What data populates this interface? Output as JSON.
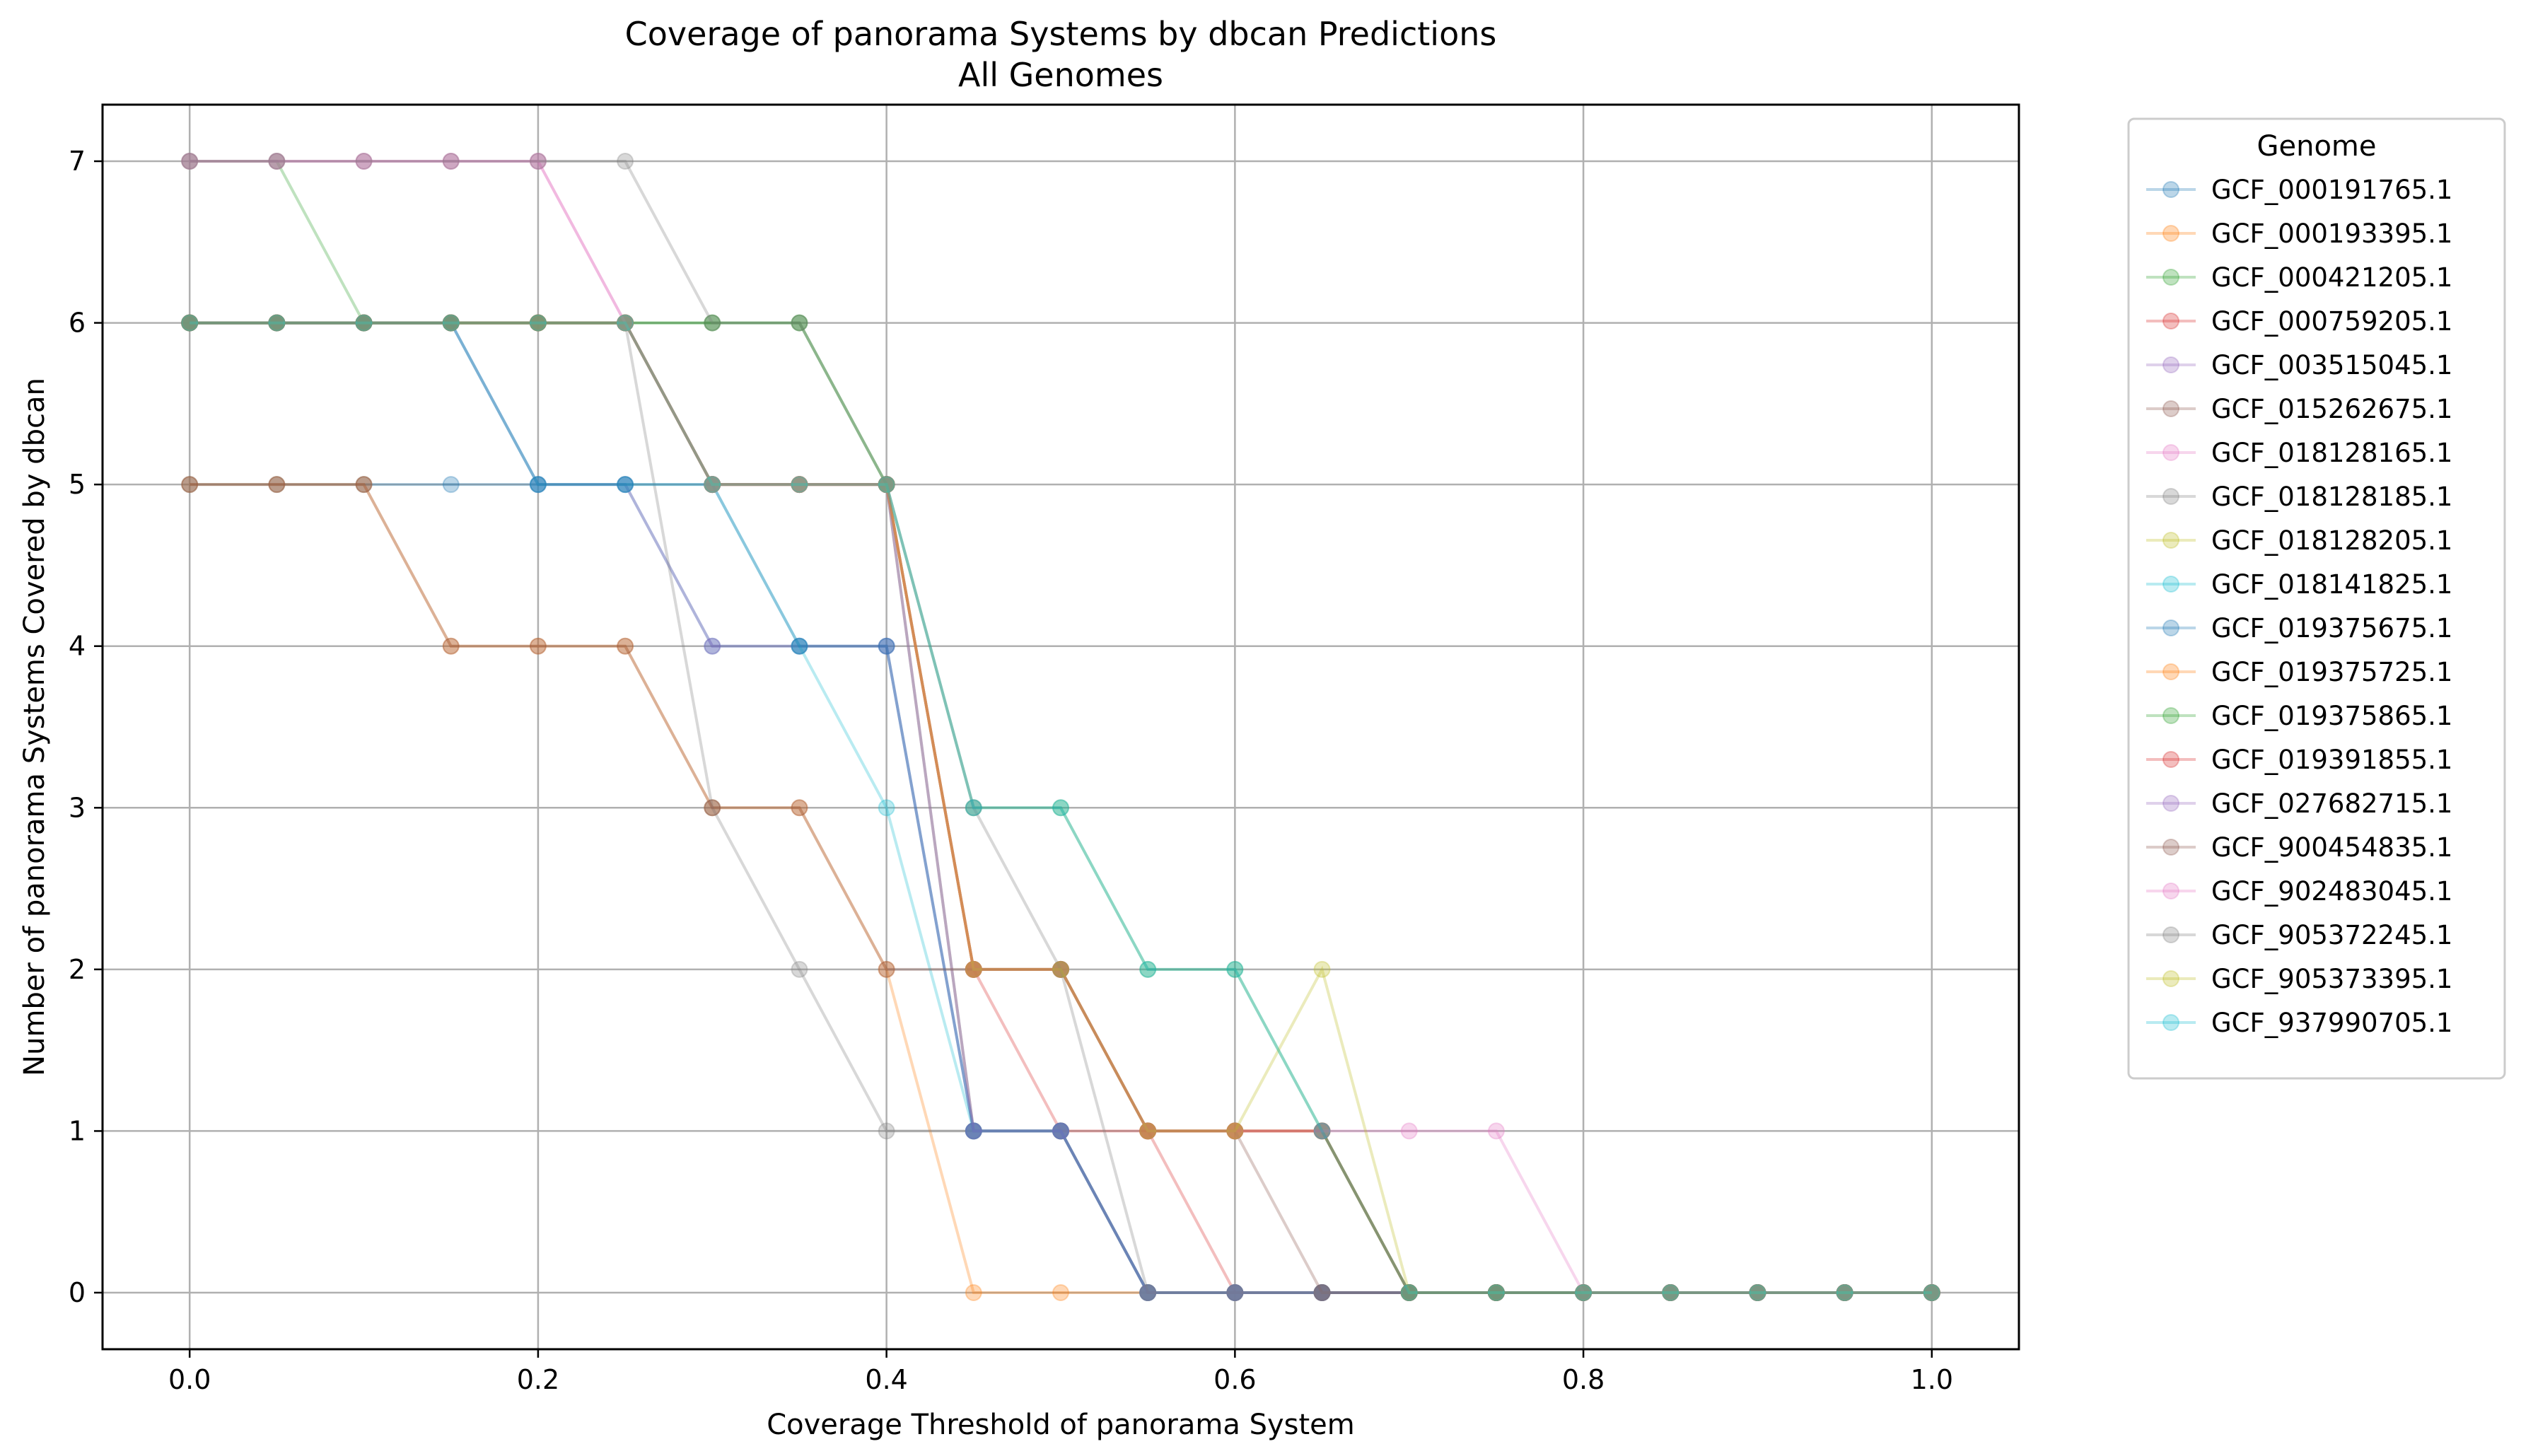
{
  "chart_data": {
    "type": "line",
    "title": "Coverage of panorama Systems by dbcan Predictions",
    "subtitle": "All Genomes",
    "xlabel": "Coverage Threshold of panorama System",
    "ylabel": "Number of panorama Systems Covered by dbcan",
    "xlim": [
      -0.05,
      1.05
    ],
    "ylim": [
      -0.35,
      7.35
    ],
    "xticks": [
      0.0,
      0.2,
      0.4,
      0.6,
      0.8,
      1.0
    ],
    "xtick_labels": [
      "0.0",
      "0.2",
      "0.4",
      "0.6",
      "0.8",
      "1.0"
    ],
    "yticks": [
      0,
      1,
      2,
      3,
      4,
      5,
      6,
      7
    ],
    "ytick_labels": [
      "0",
      "1",
      "2",
      "3",
      "4",
      "5",
      "6",
      "7"
    ],
    "grid": true,
    "legend_title": "Genome",
    "legend_position": "outside-right",
    "x": [
      0.0,
      0.05,
      0.1,
      0.15,
      0.2,
      0.25,
      0.3,
      0.35,
      0.4,
      0.45,
      0.5,
      0.55,
      0.6,
      0.65,
      0.7,
      0.75,
      0.8,
      0.85,
      0.9,
      0.95,
      1.0
    ],
    "series": [
      {
        "name": "GCF_000191765.1",
        "color": "#1f77b4",
        "values": [
          5,
          5,
          5,
          5,
          5,
          5,
          4,
          4,
          4,
          1,
          1,
          0,
          0,
          0,
          0,
          0,
          0,
          0,
          0,
          0,
          0
        ]
      },
      {
        "name": "GCF_000193395.1",
        "color": "#ff7f0e",
        "values": [
          5,
          5,
          5,
          4,
          4,
          4,
          3,
          3,
          2,
          0,
          0,
          0,
          0,
          0,
          0,
          0,
          0,
          0,
          0,
          0,
          0
        ]
      },
      {
        "name": "GCF_000421205.1",
        "color": "#2ca02c",
        "values": [
          7,
          7,
          6,
          6,
          6,
          6,
          6,
          6,
          5,
          1,
          1,
          0,
          0,
          0,
          0,
          0,
          0,
          0,
          0,
          0,
          0
        ]
      },
      {
        "name": "GCF_000759205.1",
        "color": "#d62728",
        "values": [
          6,
          6,
          6,
          6,
          6,
          6,
          5,
          5,
          5,
          2,
          1,
          1,
          0,
          0,
          0,
          0,
          0,
          0,
          0,
          0,
          0
        ]
      },
      {
        "name": "GCF_003515045.1",
        "color": "#9467bd",
        "values": [
          6,
          6,
          6,
          6,
          5,
          5,
          4,
          4,
          4,
          1,
          1,
          0,
          0,
          0,
          0,
          0,
          0,
          0,
          0,
          0,
          0
        ]
      },
      {
        "name": "GCF_015262675.1",
        "color": "#8c564b",
        "values": [
          6,
          6,
          6,
          6,
          6,
          6,
          5,
          5,
          5,
          2,
          2,
          1,
          1,
          1,
          0,
          0,
          0,
          0,
          0,
          0,
          0
        ]
      },
      {
        "name": "GCF_018128165.1",
        "color": "#e377c2",
        "values": [
          7,
          7,
          7,
          7,
          7,
          6,
          5,
          5,
          5,
          1,
          1,
          0,
          0,
          0,
          0,
          0,
          0,
          0,
          0,
          0,
          0
        ]
      },
      {
        "name": "GCF_018128185.1",
        "color": "#7f7f7f",
        "values": [
          6,
          6,
          6,
          6,
          6,
          6,
          3,
          2,
          1,
          1,
          1,
          0,
          0,
          0,
          0,
          0,
          0,
          0,
          0,
          0,
          0
        ]
      },
      {
        "name": "GCF_018128205.1",
        "color": "#bcbd22",
        "values": [
          6,
          6,
          6,
          6,
          6,
          6,
          5,
          5,
          5,
          2,
          2,
          1,
          1,
          1,
          0,
          0,
          0,
          0,
          0,
          0,
          0
        ]
      },
      {
        "name": "GCF_018141825.1",
        "color": "#17becf",
        "values": [
          6,
          6,
          6,
          6,
          5,
          5,
          5,
          4,
          3,
          1,
          1,
          0,
          0,
          0,
          0,
          0,
          0,
          0,
          0,
          0,
          0
        ]
      },
      {
        "name": "GCF_019375675.1",
        "color": "#1f77b4",
        "values": [
          6,
          6,
          6,
          6,
          5,
          5,
          5,
          4,
          4,
          1,
          1,
          0,
          0,
          0,
          0,
          0,
          0,
          0,
          0,
          0,
          0
        ]
      },
      {
        "name": "GCF_019375725.1",
        "color": "#ff7f0e",
        "values": [
          6,
          6,
          6,
          6,
          6,
          6,
          5,
          5,
          5,
          2,
          2,
          1,
          1,
          1,
          0,
          0,
          0,
          0,
          0,
          0,
          0
        ]
      },
      {
        "name": "GCF_019375865.1",
        "color": "#2ca02c",
        "values": [
          6,
          6,
          6,
          6,
          6,
          6,
          6,
          6,
          5,
          3,
          3,
          2,
          2,
          1,
          0,
          0,
          0,
          0,
          0,
          0,
          0
        ]
      },
      {
        "name": "GCF_019391855.1",
        "color": "#d62728",
        "values": [
          6,
          6,
          6,
          6,
          6,
          6,
          5,
          5,
          5,
          2,
          2,
          1,
          1,
          1,
          0,
          0,
          0,
          0,
          0,
          0,
          0
        ]
      },
      {
        "name": "GCF_027682715.1",
        "color": "#9467bd",
        "values": [
          6,
          6,
          6,
          6,
          6,
          6,
          5,
          5,
          5,
          1,
          1,
          0,
          0,
          0,
          0,
          0,
          0,
          0,
          0,
          0,
          0
        ]
      },
      {
        "name": "GCF_900454835.1",
        "color": "#8c564b",
        "values": [
          5,
          5,
          5,
          4,
          4,
          4,
          3,
          3,
          2,
          2,
          2,
          1,
          1,
          0,
          0,
          0,
          0,
          0,
          0,
          0,
          0
        ]
      },
      {
        "name": "GCF_902483045.1",
        "color": "#e377c2",
        "values": [
          7,
          7,
          7,
          7,
          7,
          6,
          5,
          5,
          5,
          2,
          2,
          1,
          1,
          1,
          1,
          1,
          0,
          0,
          0,
          0,
          0
        ]
      },
      {
        "name": "GCF_905372245.1",
        "color": "#7f7f7f",
        "values": [
          7,
          7,
          7,
          7,
          7,
          7,
          6,
          6,
          5,
          3,
          2,
          0,
          0,
          0,
          0,
          0,
          0,
          0,
          0,
          0,
          0
        ]
      },
      {
        "name": "GCF_905373395.1",
        "color": "#bcbd22",
        "values": [
          6,
          6,
          6,
          6,
          6,
          6,
          5,
          5,
          5,
          2,
          2,
          1,
          1,
          2,
          0,
          0,
          0,
          0,
          0,
          0,
          0
        ]
      },
      {
        "name": "GCF_937990705.1",
        "color": "#17becf",
        "values": [
          6,
          6,
          6,
          6,
          6,
          6,
          5,
          5,
          5,
          3,
          3,
          2,
          2,
          1,
          0,
          0,
          0,
          0,
          0,
          0,
          0
        ]
      }
    ]
  }
}
